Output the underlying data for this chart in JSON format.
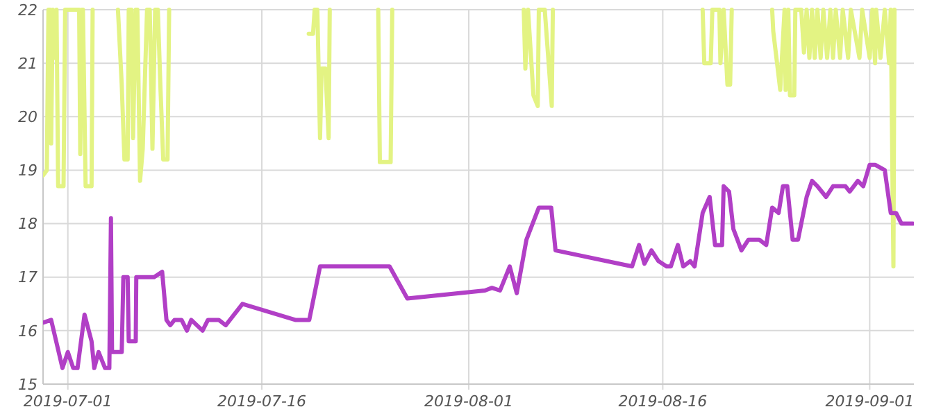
{
  "chart_data": {
    "type": "line",
    "xlim": [
      "2019-06-29T02:00",
      "2019-09-04T10:00"
    ],
    "xticks": [
      "2019-07-01",
      "2019-07-16",
      "2019-08-01",
      "2019-08-16",
      "2019-09-01"
    ],
    "ylim": [
      15,
      22
    ],
    "yticks": [
      15,
      16,
      17,
      18,
      19,
      20,
      21,
      22
    ],
    "grid": true,
    "marker": "none",
    "line_style": "solid",
    "series": [
      {
        "color": "#e3f383",
        "x": [
          "2019-06-29T02:00",
          "2019-06-29T09:00",
          "2019-06-29T12:00",
          "2019-06-29T15:00",
          "2019-06-29T17:00",
          "2019-06-29T20:00",
          "2019-06-29T22:00",
          "2019-06-30T01:00",
          "2019-06-30T03:00",
          "2019-06-30T06:00",
          "2019-06-30T16:00",
          "2019-06-30T19:00",
          "2019-07-01T21:00",
          "2019-07-01T23:00",
          "2019-07-02T02:00",
          "2019-07-02T04:00",
          "2019-07-02T09:00",
          "2019-07-02T20:00",
          "2019-07-02T22:00",
          "2019-07-03T12:00",
          "2019-07-04T21:00",
          "2019-07-05T04:00",
          "2019-07-05T09:00",
          "2019-07-05T15:00",
          "2019-07-05T17:00",
          "2019-07-05T22:00",
          "2019-07-06T01:00",
          "2019-07-06T06:00",
          "2019-07-06T09:00",
          "2019-07-06T14:00",
          "2019-07-06T19:00",
          "2019-07-07T03:00",
          "2019-07-07T08:00",
          "2019-07-07T13:00",
          "2019-07-07T18:00",
          "2019-07-07T23:00",
          "2019-07-08T04:00",
          "2019-07-08T09:00",
          "2019-07-08T17:00",
          "2019-07-08T20:00",
          "2019-07-14T00:00",
          "2019-07-19T15:00",
          "2019-07-19T23:00",
          "2019-07-20T02:00",
          "2019-07-20T07:00",
          "2019-07-20T12:00",
          "2019-07-20T15:00",
          "2019-07-20T22:00",
          "2019-07-21T04:00",
          "2019-07-21T06:00",
          "2019-07-23T00:00",
          "2019-07-25T00:00",
          "2019-07-25T03:00",
          "2019-07-25T23:00",
          "2019-07-26T02:00",
          "2019-07-30T00:00",
          "2019-08-05T06:00",
          "2019-08-05T09:00",
          "2019-08-05T14:00",
          "2019-08-06T00:00",
          "2019-08-06T08:00",
          "2019-08-06T10:00",
          "2019-08-06T21:00",
          "2019-08-07T10:00",
          "2019-08-07T12:00",
          "2019-08-12T00:00",
          "2019-08-19T02:00",
          "2019-08-19T05:00",
          "2019-08-19T17:00",
          "2019-08-19T20:00",
          "2019-08-20T09:00",
          "2019-08-20T11:00",
          "2019-08-20T17:00",
          "2019-08-21T00:00",
          "2019-08-21T05:00",
          "2019-08-21T08:00",
          "2019-08-22T12:00",
          "2019-08-24T11:00",
          "2019-08-24T13:00",
          "2019-08-25T02:00",
          "2019-08-25T10:00",
          "2019-08-25T12:00",
          "2019-08-25T17:00",
          "2019-08-25T20:00",
          "2019-08-26T04:00",
          "2019-08-26T06:00",
          "2019-08-26T17:00",
          "2019-08-26T22:00",
          "2019-08-27T03:00",
          "2019-08-27T08:00",
          "2019-08-27T13:00",
          "2019-08-27T18:00",
          "2019-08-27T23:00",
          "2019-08-28T05:00",
          "2019-08-28T10:00",
          "2019-08-28T17:00",
          "2019-08-28T23:00",
          "2019-08-29T04:00",
          "2019-08-29T09:00",
          "2019-08-29T17:00",
          "2019-08-29T22:00",
          "2019-08-30T08:00",
          "2019-08-30T13:00",
          "2019-08-31T05:00",
          "2019-08-31T10:00",
          "2019-09-01T00:00",
          "2019-09-01T05:00",
          "2019-09-01T10:00",
          "2019-09-01T12:00",
          "2019-09-01T20:00",
          "2019-09-02T04:00",
          "2019-09-02T12:00",
          "2019-09-02T15:00",
          "2019-09-02T20:00",
          "2019-09-02T22:00"
        ],
        "values": [
          18.9,
          19.0,
          22,
          22,
          19.5,
          22,
          21.1,
          21.1,
          22,
          18.7,
          18.7,
          22,
          22,
          19.3,
          22,
          22,
          18.7,
          18.7,
          22,
          null,
          22,
          20.6,
          19.2,
          19.2,
          22,
          22,
          19.6,
          22,
          22,
          18.8,
          19.4,
          22,
          22,
          19.4,
          22,
          22,
          20.5,
          19.2,
          19.2,
          22,
          null,
          21.55,
          21.55,
          22,
          22,
          19.6,
          20.9,
          20.9,
          19.6,
          22,
          null,
          22,
          19.15,
          19.15,
          22,
          null,
          22,
          20.9,
          22,
          20.4,
          20.2,
          22,
          22,
          20.2,
          22,
          null,
          22,
          21.0,
          21.0,
          22,
          22,
          21.0,
          22,
          20.6,
          20.6,
          22,
          null,
          22,
          21.6,
          20.5,
          22,
          20.5,
          22,
          20.4,
          20.4,
          22,
          22,
          21.2,
          22,
          21.1,
          22,
          21.1,
          22,
          21.1,
          22,
          21.1,
          22,
          21.1,
          22,
          21.1,
          22,
          21.1,
          22,
          21.1,
          22,
          21.1,
          22,
          21.0,
          22,
          21.1,
          22,
          21.0,
          22,
          17.2,
          22
        ]
      },
      {
        "color": "#b13fc6",
        "x": [
          "2019-06-29T02:00",
          "2019-06-29T17:00",
          "2019-06-30T14:00",
          "2019-07-01T00:00",
          "2019-07-01T10:00",
          "2019-07-01T18:00",
          "2019-07-02T07:00",
          "2019-07-02T20:00",
          "2019-07-03T01:00",
          "2019-07-03T09:00",
          "2019-07-03T21:00",
          "2019-07-04T05:00",
          "2019-07-04T08:00",
          "2019-07-04T10:00",
          "2019-07-05T04:00",
          "2019-07-05T07:00",
          "2019-07-05T15:00",
          "2019-07-05T17:00",
          "2019-07-06T06:00",
          "2019-07-06T07:00",
          "2019-07-07T16:00",
          "2019-07-08T07:00",
          "2019-07-08T15:00",
          "2019-07-08T22:00",
          "2019-07-09T06:00",
          "2019-07-09T19:00",
          "2019-07-10T05:00",
          "2019-07-10T13:00",
          "2019-07-11T10:00",
          "2019-07-11T20:00",
          "2019-07-12T16:00",
          "2019-07-13T05:00",
          "2019-07-14T12:00",
          "2019-07-18T14:00",
          "2019-07-19T16:00",
          "2019-07-20T12:00",
          "2019-07-25T21:00",
          "2019-07-27T06:00",
          "2019-08-02T06:00",
          "2019-08-02T19:00",
          "2019-08-03T10:00",
          "2019-08-04T04:00",
          "2019-08-04T17:00",
          "2019-08-05T11:00",
          "2019-08-06T10:00",
          "2019-08-07T09:00",
          "2019-08-07T17:00",
          "2019-08-13T15:00",
          "2019-08-14T04:00",
          "2019-08-14T14:00",
          "2019-08-15T03:00",
          "2019-08-15T16:00",
          "2019-08-16T07:00",
          "2019-08-16T15:00",
          "2019-08-17T04:00",
          "2019-08-17T14:00",
          "2019-08-18T03:00",
          "2019-08-18T11:00",
          "2019-08-19T02:00",
          "2019-08-19T15:00",
          "2019-08-20T01:00",
          "2019-08-20T14:00",
          "2019-08-20T17:00",
          "2019-08-21T03:00",
          "2019-08-21T11:00",
          "2019-08-22T02:00",
          "2019-08-22T15:00",
          "2019-08-23T11:00",
          "2019-08-24T00:00",
          "2019-08-24T11:00",
          "2019-08-24T23:00",
          "2019-08-25T07:00",
          "2019-08-25T15:00",
          "2019-08-26T01:00",
          "2019-08-26T11:00",
          "2019-08-27T03:00",
          "2019-08-27T13:00",
          "2019-08-27T23:00",
          "2019-08-28T15:00",
          "2019-08-29T04:00",
          "2019-08-30T03:00",
          "2019-08-30T11:00",
          "2019-08-31T02:00",
          "2019-08-31T12:00",
          "2019-09-01T00:00",
          "2019-09-01T10:00",
          "2019-09-02T04:00",
          "2019-09-02T15:00",
          "2019-09-03T01:00",
          "2019-09-03T11:00",
          "2019-09-04T08:00"
        ],
        "values": [
          16.15,
          16.2,
          15.3,
          15.6,
          15.3,
          15.3,
          16.3,
          15.8,
          15.3,
          15.6,
          15.3,
          15.3,
          18.1,
          15.6,
          15.6,
          17.0,
          17.0,
          15.8,
          15.8,
          17.0,
          17.0,
          17.1,
          16.2,
          16.1,
          16.2,
          16.2,
          16.0,
          16.2,
          16.0,
          16.2,
          16.2,
          16.1,
          16.5,
          16.2,
          16.2,
          17.2,
          17.2,
          16.6,
          16.75,
          16.8,
          16.75,
          17.2,
          16.7,
          17.7,
          18.3,
          18.3,
          17.5,
          17.2,
          17.6,
          17.25,
          17.5,
          17.3,
          17.2,
          17.2,
          17.6,
          17.2,
          17.3,
          17.2,
          18.2,
          18.5,
          17.6,
          17.6,
          18.7,
          18.6,
          17.9,
          17.5,
          17.7,
          17.7,
          17.6,
          18.3,
          18.2,
          18.7,
          18.7,
          17.7,
          17.7,
          18.5,
          18.8,
          18.7,
          18.5,
          18.7,
          18.7,
          18.6,
          18.8,
          18.7,
          19.1,
          19.1,
          19.0,
          18.2,
          18.2,
          18.0,
          18.0
        ]
      }
    ]
  }
}
